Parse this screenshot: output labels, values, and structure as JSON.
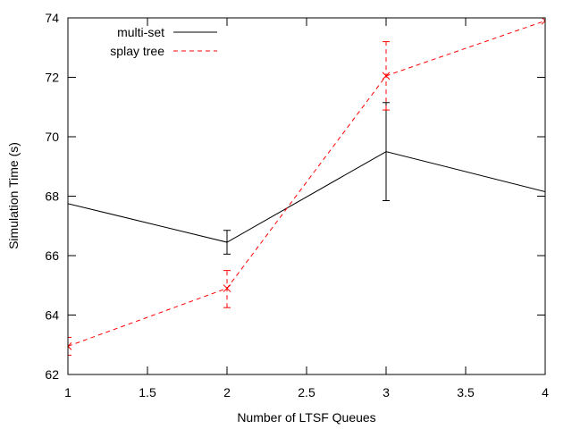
{
  "chart_data": {
    "type": "line",
    "title": "",
    "xlabel": "Number of LTSF Queues",
    "ylabel": "Simulation Time (s)",
    "xlim": [
      1,
      4
    ],
    "ylim": [
      62,
      74
    ],
    "xticks": [
      1,
      1.5,
      2,
      2.5,
      3,
      3.5,
      4
    ],
    "yticks": [
      62,
      64,
      66,
      68,
      70,
      72,
      74
    ],
    "xtick_labels": [
      "1",
      "1.5",
      "2",
      "2.5",
      "3",
      "3.5",
      "4"
    ],
    "ytick_labels": [
      "62",
      "64",
      "66",
      "68",
      "70",
      "72",
      "74"
    ],
    "grid": false,
    "legend_position": "top-left",
    "series": [
      {
        "name": "multi-set",
        "color": "#000000",
        "dash": "solid",
        "marker": "none",
        "x": [
          1,
          2,
          3,
          4
        ],
        "y": [
          67.75,
          66.45,
          69.5,
          68.15
        ],
        "err_low": [
          null,
          66.05,
          67.85,
          null
        ],
        "err_high": [
          null,
          66.85,
          71.15,
          null
        ]
      },
      {
        "name": "splay tree",
        "color": "#ff0000",
        "dash": "dashed",
        "marker": "x",
        "x": [
          1,
          2,
          3,
          4
        ],
        "y": [
          62.95,
          64.9,
          72.05,
          73.9
        ],
        "err_low": [
          62.65,
          64.25,
          70.9,
          null
        ],
        "err_high": [
          63.25,
          65.5,
          73.2,
          null
        ]
      }
    ]
  }
}
